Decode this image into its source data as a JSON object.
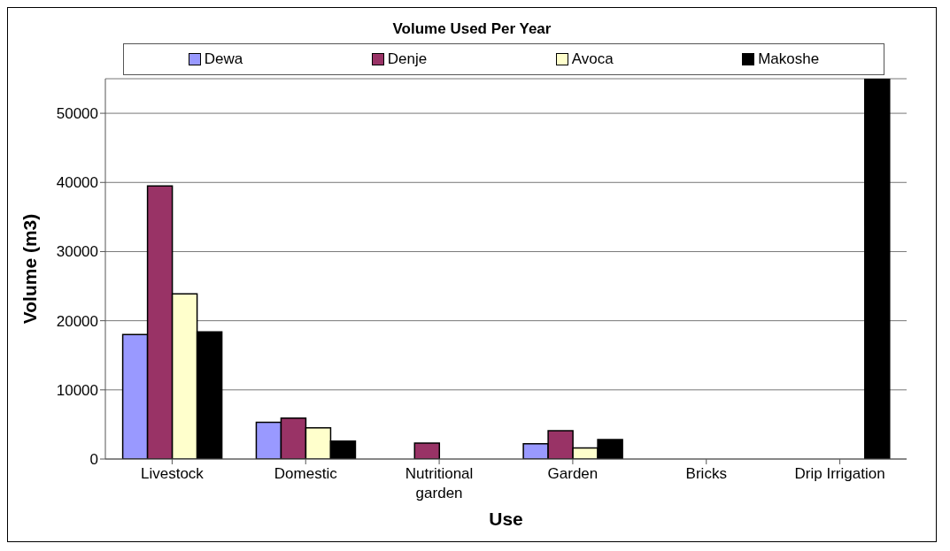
{
  "chart_data": {
    "type": "bar",
    "title": "Volume Used Per Year",
    "xlabel": "Use",
    "ylabel": "Volume (m3)",
    "categories": [
      "Livestock",
      "Domestic",
      "Nutritional garden",
      "Garden",
      "Bricks",
      "Drip Irrigation"
    ],
    "series": [
      {
        "name": "Dewa",
        "color": "#9999ff",
        "values": [
          18000,
          5300,
          null,
          2200,
          null,
          null
        ]
      },
      {
        "name": "Denje",
        "color": "#993366",
        "values": [
          39500,
          5900,
          2300,
          4100,
          null,
          null
        ]
      },
      {
        "name": "Avoca",
        "color": "#ffffcc",
        "values": [
          23900,
          4500,
          null,
          1600,
          null,
          null
        ]
      },
      {
        "name": "Makoshe",
        "color": "#000000",
        "values": [
          18400,
          2600,
          null,
          2800,
          null,
          55000
        ]
      }
    ],
    "ylim": [
      0,
      55000
    ],
    "yticks": [
      0,
      10000,
      20000,
      30000,
      40000,
      50000
    ],
    "grid": "y",
    "legend": "top"
  }
}
